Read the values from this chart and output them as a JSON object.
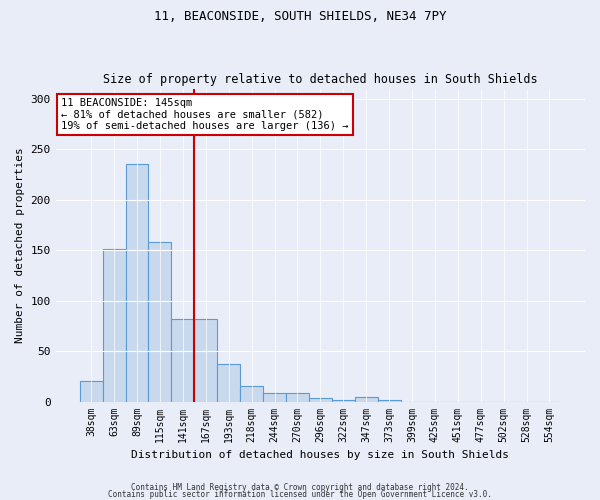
{
  "title1": "11, BEACONSIDE, SOUTH SHIELDS, NE34 7PY",
  "title2": "Size of property relative to detached houses in South Shields",
  "xlabel": "Distribution of detached houses by size in South Shields",
  "ylabel": "Number of detached properties",
  "bar_labels": [
    "38sqm",
    "63sqm",
    "89sqm",
    "115sqm",
    "141sqm",
    "167sqm",
    "193sqm",
    "218sqm",
    "244sqm",
    "270sqm",
    "296sqm",
    "322sqm",
    "347sqm",
    "373sqm",
    "399sqm",
    "425sqm",
    "451sqm",
    "477sqm",
    "502sqm",
    "528sqm",
    "554sqm"
  ],
  "bar_values": [
    20,
    151,
    235,
    158,
    82,
    82,
    37,
    15,
    8,
    8,
    4,
    2,
    5,
    2,
    0,
    0,
    0,
    0,
    0,
    0,
    0
  ],
  "bar_color": "#c9d9ed",
  "bar_edgecolor": "#5b9bd5",
  "vline_x": 4.5,
  "vline_color": "#cc0000",
  "annotation_text": "11 BEACONSIDE: 145sqm\n← 81% of detached houses are smaller (582)\n19% of semi-detached houses are larger (136) →",
  "annotation_box_color": "#ffffff",
  "annotation_box_edgecolor": "#cc0000",
  "ylim": [
    0,
    310
  ],
  "yticks": [
    0,
    50,
    100,
    150,
    200,
    250,
    300
  ],
  "footer1": "Contains HM Land Registry data © Crown copyright and database right 2024.",
  "footer2": "Contains public sector information licensed under the Open Government Licence v3.0.",
  "bg_color": "#e8edf8",
  "plot_bg_color": "#e8edf8"
}
